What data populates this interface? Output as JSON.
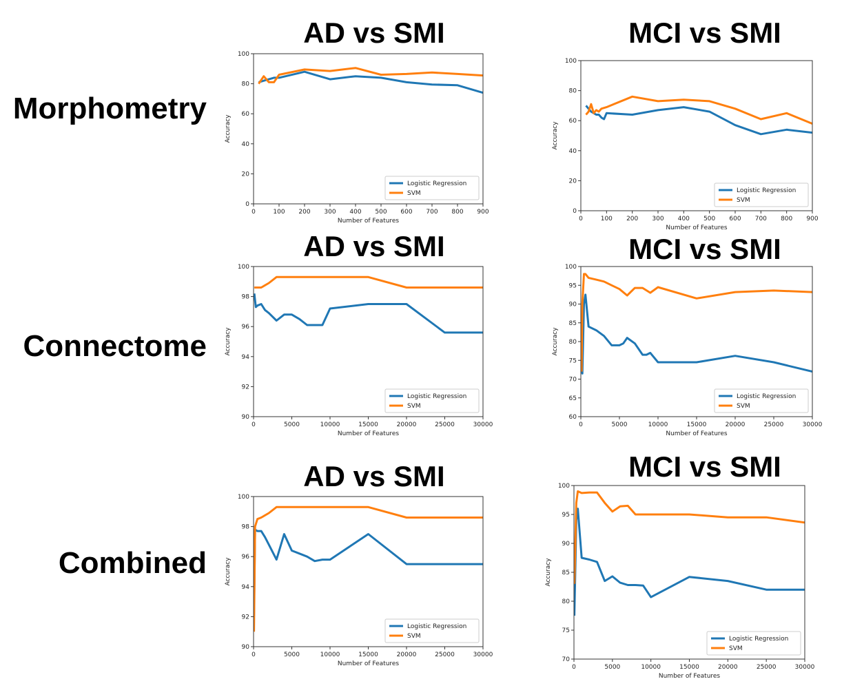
{
  "row_labels": [
    "Morphometry",
    "Connectome",
    "Combined"
  ],
  "chart_data": [
    {
      "id": "c0",
      "type": "line",
      "title": "AD vs SMI",
      "xlabel": "Number of Features",
      "ylabel": "Accuracy",
      "xlim": [
        0,
        900
      ],
      "ylim": [
        0,
        100
      ],
      "xticks": [
        0,
        100,
        200,
        300,
        400,
        500,
        600,
        700,
        800,
        900
      ],
      "yticks": [
        0,
        20,
        40,
        60,
        80,
        100
      ],
      "legend": "lower-right",
      "series": [
        {
          "name": "Logistic Regression",
          "color": "#1f77b4",
          "x": [
            20,
            40,
            60,
            80,
            100,
            200,
            300,
            400,
            500,
            600,
            700,
            800,
            900
          ],
          "y": [
            81,
            82,
            83,
            84,
            84,
            88,
            83,
            85,
            84,
            81,
            79.5,
            79,
            74
          ]
        },
        {
          "name": "SVM",
          "color": "#ff7f0e",
          "x": [
            20,
            40,
            60,
            80,
            100,
            200,
            300,
            400,
            500,
            600,
            700,
            800,
            900
          ],
          "y": [
            80,
            85,
            81,
            81,
            86,
            89.5,
            88.5,
            90.5,
            86,
            86.5,
            87.5,
            86.5,
            85.5
          ]
        }
      ]
    },
    {
      "id": "c1",
      "type": "line",
      "title": "MCI vs SMI",
      "xlabel": "Number of Features",
      "ylabel": "Accuracy",
      "xlim": [
        0,
        900
      ],
      "ylim": [
        0,
        100
      ],
      "xticks": [
        0,
        100,
        200,
        300,
        400,
        500,
        600,
        700,
        800,
        900
      ],
      "yticks": [
        0,
        20,
        40,
        60,
        80,
        100
      ],
      "legend": "lower-right",
      "series": [
        {
          "name": "Logistic Regression",
          "color": "#1f77b4",
          "x": [
            20,
            30,
            40,
            50,
            60,
            70,
            80,
            90,
            100,
            200,
            300,
            400,
            500,
            600,
            700,
            800,
            900
          ],
          "y": [
            70,
            68,
            66,
            65,
            64,
            64,
            62,
            61,
            65,
            64,
            67,
            69,
            66,
            57,
            51,
            54,
            52
          ]
        },
        {
          "name": "SVM",
          "color": "#ff7f0e",
          "x": [
            20,
            30,
            40,
            50,
            60,
            70,
            80,
            100,
            200,
            300,
            400,
            500,
            600,
            700,
            800,
            900
          ],
          "y": [
            64,
            66,
            71,
            65,
            67,
            66,
            68,
            69,
            76,
            73,
            74,
            73,
            68,
            61,
            65,
            58
          ]
        }
      ]
    },
    {
      "id": "c2",
      "type": "line",
      "title": "AD vs SMI",
      "xlabel": "Number of Features",
      "ylabel": "Accuracy",
      "xlim": [
        0,
        30000
      ],
      "ylim": [
        90,
        100
      ],
      "xticks": [
        0,
        5000,
        10000,
        15000,
        20000,
        25000,
        30000
      ],
      "yticks": [
        90,
        92,
        94,
        96,
        98,
        100
      ],
      "legend": "lower-right",
      "series": [
        {
          "name": "Logistic Regression",
          "color": "#1f77b4",
          "x": [
            100,
            300,
            500,
            1000,
            1500,
            2000,
            3000,
            4000,
            5000,
            6000,
            7000,
            9000,
            10000,
            15000,
            20000,
            25000,
            30000
          ],
          "y": [
            98.2,
            97.3,
            97.4,
            97.5,
            97.1,
            96.9,
            96.4,
            96.8,
            96.8,
            96.5,
            96.1,
            96.1,
            97.2,
            97.5,
            97.5,
            95.6,
            95.6
          ]
        },
        {
          "name": "SVM",
          "color": "#ff7f0e",
          "x": [
            100,
            500,
            1000,
            2000,
            3000,
            5000,
            10000,
            15000,
            20000,
            25000,
            30000
          ],
          "y": [
            98.6,
            98.6,
            98.6,
            98.9,
            99.3,
            99.3,
            99.3,
            99.3,
            98.6,
            98.6,
            98.6
          ]
        }
      ]
    },
    {
      "id": "c3",
      "type": "line",
      "title": "MCI vs SMI",
      "xlabel": "Number of Features",
      "ylabel": "Accuracy",
      "xlim": [
        0,
        30000
      ],
      "ylim": [
        60,
        100
      ],
      "xticks": [
        0,
        5000,
        10000,
        15000,
        20000,
        25000,
        30000
      ],
      "yticks": [
        60,
        65,
        70,
        75,
        80,
        85,
        90,
        95,
        100
      ],
      "legend": "lower-right",
      "series": [
        {
          "name": "Logistic Regression",
          "color": "#1f77b4",
          "x": [
            100,
            200,
            400,
            600,
            1000,
            2000,
            3000,
            4000,
            5000,
            5500,
            6000,
            7000,
            8000,
            8500,
            9000,
            10000,
            15000,
            20000,
            25000,
            30000
          ],
          "y": [
            75,
            71.5,
            90,
            92.5,
            84,
            83,
            81.5,
            79,
            79,
            79.5,
            81,
            79.5,
            76.5,
            76.5,
            77,
            74.5,
            74.5,
            76.2,
            74.5,
            72
          ]
        },
        {
          "name": "SVM",
          "color": "#ff7f0e",
          "x": [
            100,
            200,
            400,
            600,
            1000,
            2000,
            3000,
            4000,
            5000,
            6000,
            7000,
            8000,
            9000,
            10000,
            15000,
            20000,
            25000,
            30000
          ],
          "y": [
            72,
            90,
            98,
            98,
            97,
            96.5,
            96,
            95,
            94,
            92.3,
            94.3,
            94.3,
            93,
            94.5,
            91.5,
            93.2,
            93.6,
            93.2
          ]
        }
      ]
    },
    {
      "id": "c4",
      "type": "line",
      "title": "AD vs SMI",
      "xlabel": "Number of Features",
      "ylabel": "Accuracy",
      "xlim": [
        0,
        30000
      ],
      "ylim": [
        90,
        100
      ],
      "xticks": [
        0,
        5000,
        10000,
        15000,
        20000,
        25000,
        30000
      ],
      "yticks": [
        90,
        92,
        94,
        96,
        98,
        100
      ],
      "legend": "lower-right",
      "series": [
        {
          "name": "Logistic Regression",
          "color": "#1f77b4",
          "x": [
            50,
            200,
            500,
            1000,
            1500,
            2000,
            3000,
            4000,
            5000,
            6000,
            7000,
            8000,
            9000,
            10000,
            15000,
            20000,
            25000,
            30000
          ],
          "y": [
            92,
            97.8,
            97.7,
            97.7,
            97.3,
            96.8,
            95.8,
            97.5,
            96.4,
            96.2,
            96.0,
            95.7,
            95.8,
            95.8,
            97.5,
            95.5,
            95.5,
            95.5
          ]
        },
        {
          "name": "SVM",
          "color": "#ff7f0e",
          "x": [
            50,
            200,
            500,
            1000,
            2000,
            3000,
            5000,
            10000,
            15000,
            20000,
            25000,
            30000
          ],
          "y": [
            91,
            98.0,
            98.5,
            98.6,
            98.9,
            99.3,
            99.3,
            99.3,
            99.3,
            98.6,
            98.6,
            98.6
          ]
        }
      ]
    },
    {
      "id": "c5",
      "type": "line",
      "title": "MCI vs SMI",
      "xlabel": "Number of Features",
      "ylabel": "Accuracy",
      "xlim": [
        0,
        30000
      ],
      "ylim": [
        70,
        100
      ],
      "xticks": [
        0,
        5000,
        10000,
        15000,
        20000,
        25000,
        30000
      ],
      "yticks": [
        70,
        75,
        80,
        85,
        90,
        95,
        100
      ],
      "legend": "lower-right",
      "series": [
        {
          "name": "Logistic Regression",
          "color": "#1f77b4",
          "x": [
            50,
            300,
            500,
            1000,
            2000,
            3000,
            4000,
            5000,
            6000,
            7000,
            8000,
            9000,
            10000,
            15000,
            20000,
            25000,
            30000
          ],
          "y": [
            77.5,
            94,
            96,
            87.5,
            87.2,
            86.8,
            83.5,
            84.3,
            83.2,
            82.8,
            82.8,
            82.7,
            80.7,
            84.2,
            83.5,
            82,
            82
          ]
        },
        {
          "name": "SVM",
          "color": "#ff7f0e",
          "x": [
            50,
            300,
            500,
            1000,
            2000,
            3000,
            4000,
            5000,
            6000,
            7000,
            8000,
            10000,
            15000,
            20000,
            25000,
            30000
          ],
          "y": [
            83,
            97,
            99,
            98.7,
            98.8,
            98.8,
            97,
            95.5,
            96.4,
            96.5,
            95,
            95,
            95,
            94.5,
            94.5,
            93.6
          ]
        }
      ]
    }
  ]
}
